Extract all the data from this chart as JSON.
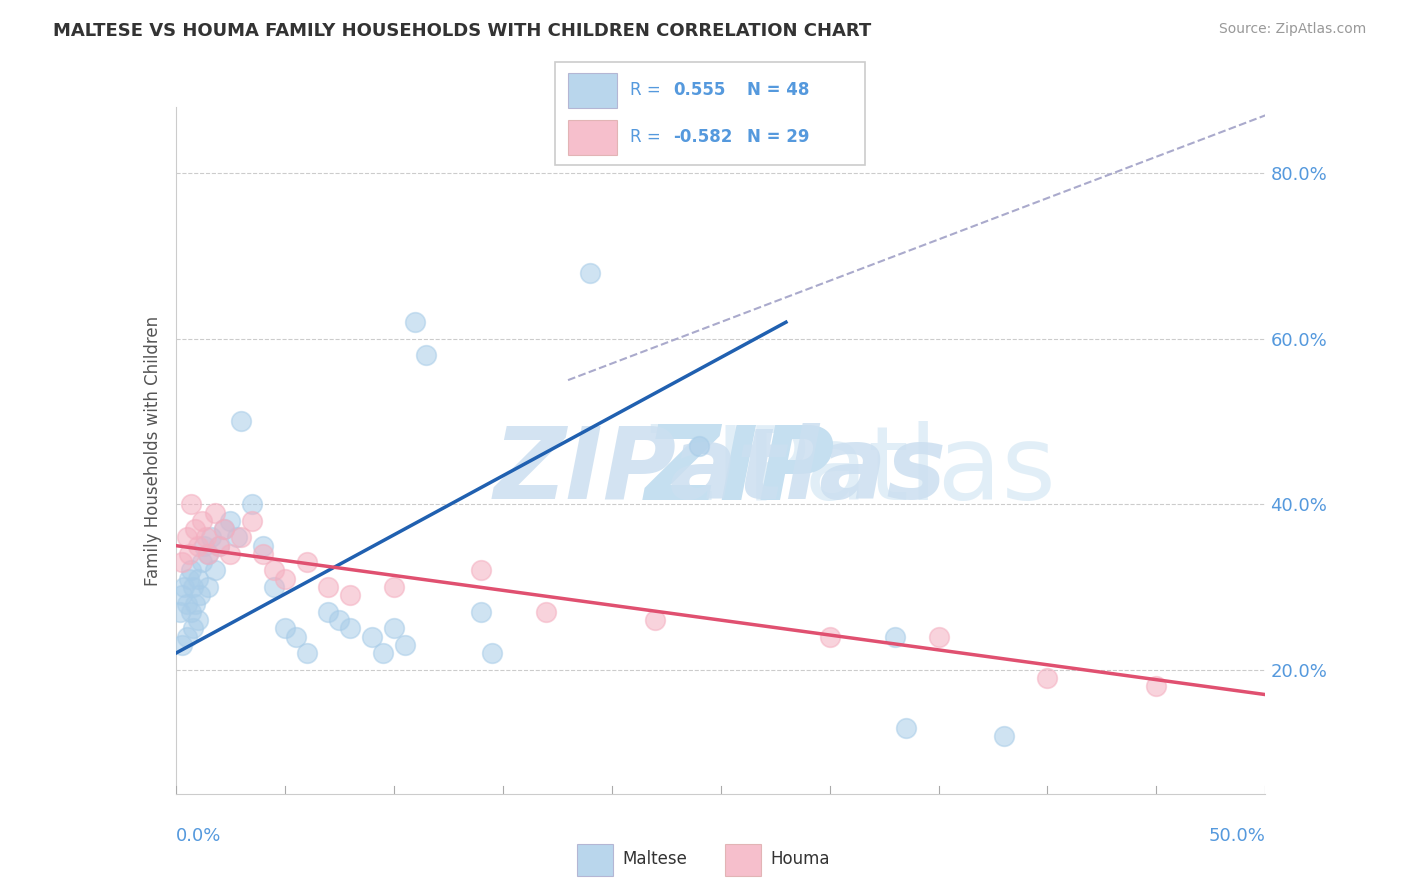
{
  "title": "MALTESE VS HOUMA FAMILY HOUSEHOLDS WITH CHILDREN CORRELATION CHART",
  "source": "Source: ZipAtlas.com",
  "ylabel": "Family Households with Children",
  "xlim": [
    0.0,
    50.0
  ],
  "ylim": [
    5.0,
    88.0
  ],
  "yticks": [
    20.0,
    40.0,
    60.0,
    80.0
  ],
  "ytick_labels": [
    "20.0%",
    "40.0%",
    "60.0%",
    "80.0%"
  ],
  "maltese_R": 0.555,
  "maltese_N": 48,
  "houma_R": -0.582,
  "houma_N": 29,
  "maltese_color": "#a8cce8",
  "houma_color": "#f4afc0",
  "maltese_line_color": "#2060b0",
  "houma_line_color": "#e05070",
  "trend_dashed_color": "#aaaacc",
  "watermark_zip_color": "#c5dff0",
  "watermark_atlas_color": "#c5dff0",
  "background_color": "#ffffff",
  "grid_color": "#cccccc",
  "axis_label_color": "#5599dd",
  "title_color": "#333333",
  "ylabel_color": "#555555",
  "source_color": "#999999",
  "legend_text_color": "#5599dd",
  "legend_border_color": "#cccccc",
  "maltese_x": [
    0.2,
    0.3,
    0.3,
    0.4,
    0.5,
    0.5,
    0.6,
    0.7,
    0.7,
    0.8,
    0.8,
    0.9,
    1.0,
    1.0,
    1.1,
    1.2,
    1.3,
    1.5,
    1.5,
    1.6,
    1.8,
    2.0,
    2.2,
    2.5,
    2.8,
    3.0,
    3.5,
    4.0,
    4.5,
    5.0,
    5.5,
    6.0,
    7.0,
    7.5,
    8.0,
    9.0,
    9.5,
    10.0,
    10.5,
    11.0,
    11.5,
    14.0,
    14.5,
    19.0,
    24.0,
    33.0,
    33.5,
    38.0
  ],
  "maltese_y": [
    27.0,
    29.0,
    23.0,
    30.0,
    28.0,
    24.0,
    31.0,
    27.0,
    32.0,
    25.0,
    30.0,
    28.0,
    26.0,
    31.0,
    29.0,
    33.0,
    35.0,
    34.0,
    30.0,
    36.0,
    32.0,
    35.0,
    37.0,
    38.0,
    36.0,
    50.0,
    40.0,
    35.0,
    30.0,
    25.0,
    24.0,
    22.0,
    27.0,
    26.0,
    25.0,
    24.0,
    22.0,
    25.0,
    23.0,
    62.0,
    58.0,
    27.0,
    22.0,
    68.0,
    47.0,
    24.0,
    13.0,
    12.0
  ],
  "houma_x": [
    0.3,
    0.5,
    0.6,
    0.7,
    0.9,
    1.0,
    1.2,
    1.4,
    1.5,
    1.8,
    2.0,
    2.2,
    2.5,
    3.0,
    3.5,
    4.0,
    4.5,
    5.0,
    6.0,
    7.0,
    8.0,
    10.0,
    14.0,
    17.0,
    22.0,
    30.0,
    35.0,
    40.0,
    45.0
  ],
  "houma_y": [
    33.0,
    36.0,
    34.0,
    40.0,
    37.0,
    35.0,
    38.0,
    36.0,
    34.0,
    39.0,
    35.0,
    37.0,
    34.0,
    36.0,
    38.0,
    34.0,
    32.0,
    31.0,
    33.0,
    30.0,
    29.0,
    30.0,
    32.0,
    27.0,
    26.0,
    24.0,
    24.0,
    19.0,
    18.0
  ]
}
